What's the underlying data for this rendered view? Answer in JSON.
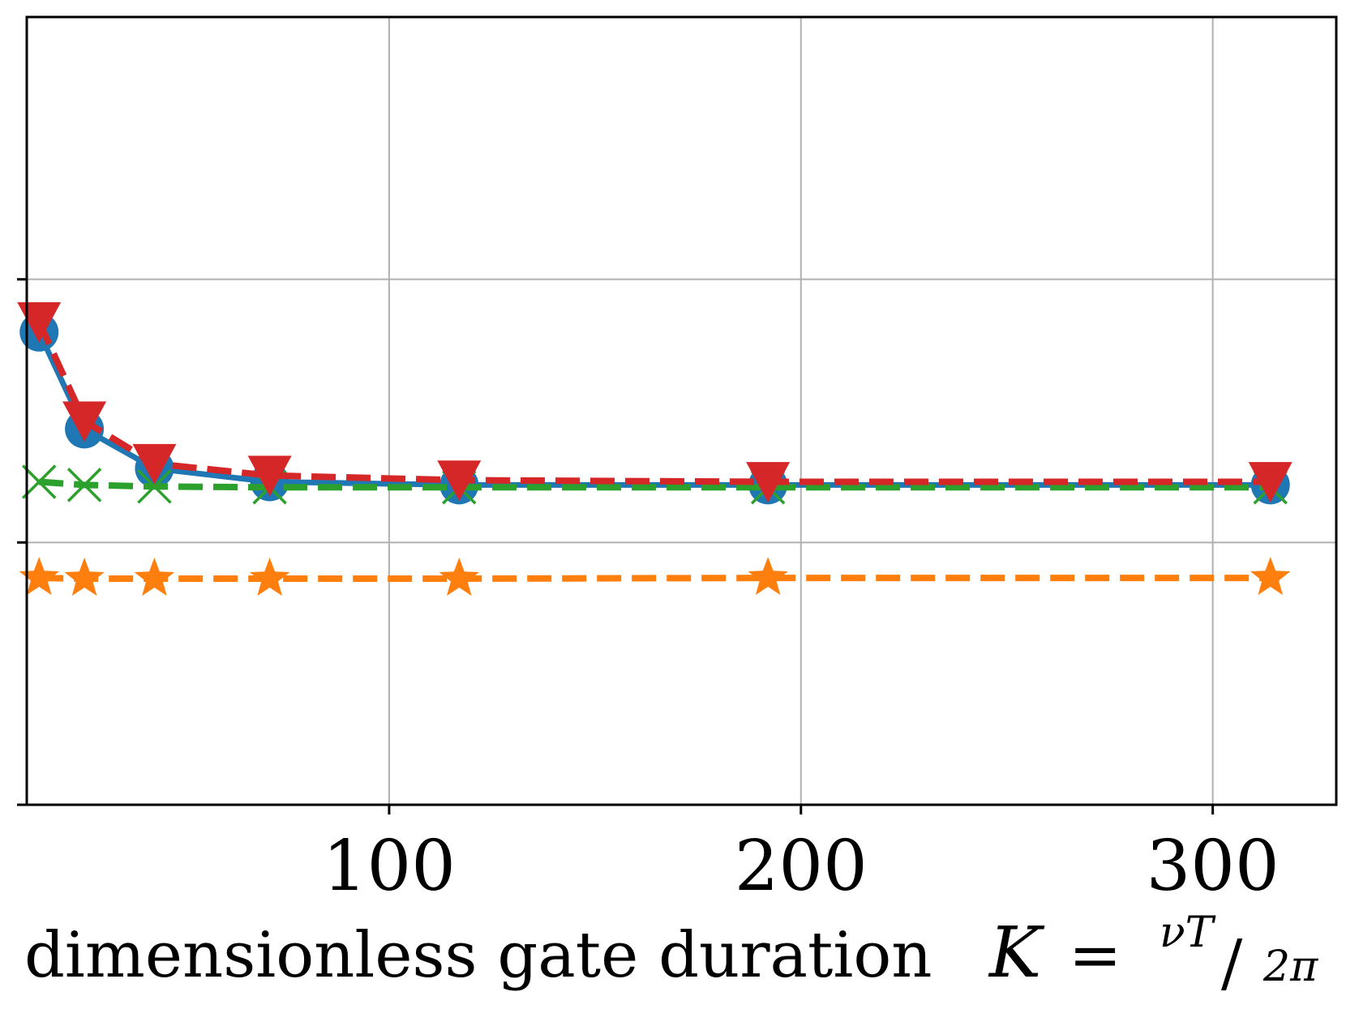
{
  "chart_data": {
    "type": "line",
    "title": "",
    "xlabel": "dimensionless gate duration",
    "xlabel_math": {
      "symbol": "K",
      "equals": "=",
      "numerator": "νT",
      "slash": "/",
      "denominator": "2π"
    },
    "ylabel": "",
    "xlim": [
      12,
      330
    ],
    "ylim": [
      0,
      1
    ],
    "xticks": [
      100,
      200,
      300
    ],
    "xtick_labels": [
      "100",
      "200",
      "300"
    ],
    "yticks": [
      0,
      0.333,
      0.667
    ],
    "ytick_labels": [
      "",
      "",
      ""
    ],
    "grid": true,
    "x": [
      15,
      26,
      43,
      71,
      117,
      192,
      314
    ],
    "series": [
      {
        "name": "blue",
        "color": "#1f77b4",
        "linestyle": "solid",
        "marker": "circle",
        "values": [
          0.6,
          0.477,
          0.427,
          0.41,
          0.406,
          0.406,
          0.406
        ]
      },
      {
        "name": "orange",
        "color": "#ff7f0e",
        "linestyle": "dashed",
        "marker": "star",
        "values": [
          0.288,
          0.287,
          0.287,
          0.287,
          0.287,
          0.288,
          0.288
        ]
      },
      {
        "name": "green",
        "color": "#2ca02c",
        "linestyle": "dashed",
        "marker": "x",
        "values": [
          0.41,
          0.406,
          0.404,
          0.403,
          0.403,
          0.403,
          0.403
        ]
      },
      {
        "name": "red",
        "color": "#d62728",
        "linestyle": "dashed",
        "marker": "triangle-down",
        "values": [
          0.613,
          0.487,
          0.433,
          0.418,
          0.412,
          0.41,
          0.41
        ]
      }
    ]
  }
}
